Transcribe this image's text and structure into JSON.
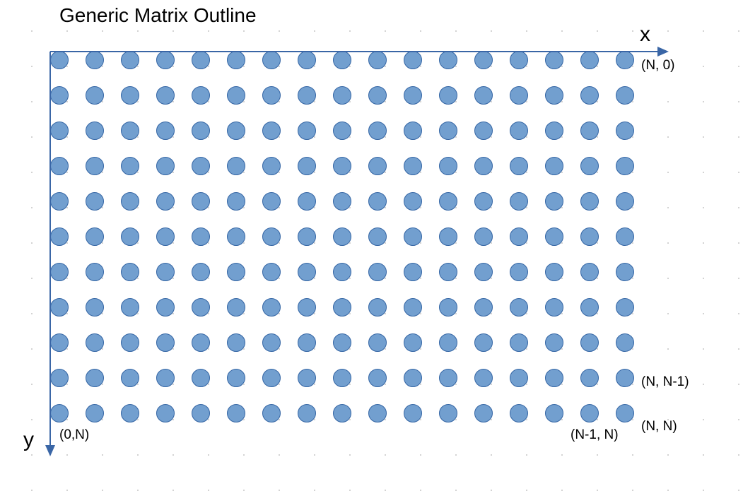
{
  "title": "Generic Matrix Outline",
  "axes": {
    "x_label": "x",
    "y_label": "y",
    "color": "#3a66a6"
  },
  "grid": {
    "rows": 11,
    "cols": 17,
    "dot_fill": "#729fcf",
    "dot_stroke": "#3465a4"
  },
  "labels": {
    "top_right": "(N, 0)",
    "right_second_last": "(N, N-1)",
    "right_last": "(N, N)",
    "bottom_left": "(0,N)",
    "bottom_second_last": "(N-1, N)"
  }
}
